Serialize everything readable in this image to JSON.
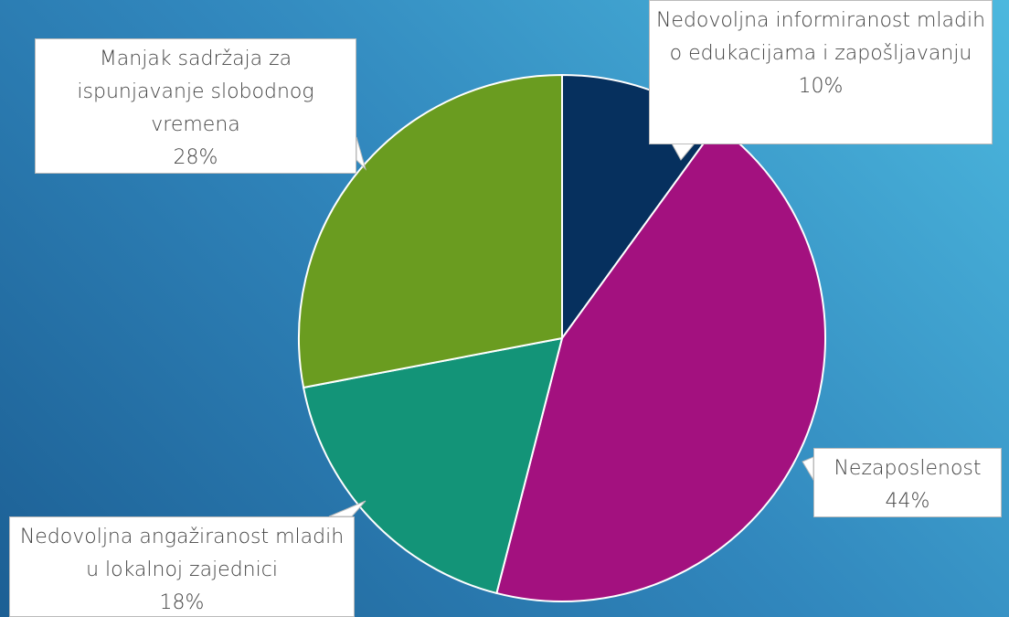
{
  "chart_data": {
    "type": "pie",
    "categories": [
      "Nedovoljna informiranost mladih o edukacijama i zapošljavanju",
      "Nezaposlenost",
      "Nedovoljna angažiranost mladih u lokalnoj zajednici",
      "Manjak sadržaja za ispunjavanje slobodnog vremena"
    ],
    "values": [
      10,
      44,
      18,
      28
    ],
    "value_labels": [
      "10%",
      "44%",
      "18%",
      "28%"
    ],
    "colors": [
      "#06305e",
      "#a3117f",
      "#139478",
      "#6a9c20"
    ]
  }
}
